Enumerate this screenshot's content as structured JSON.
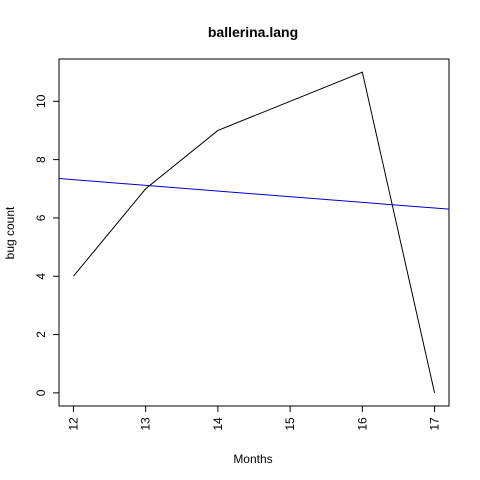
{
  "chart_data": {
    "type": "line",
    "title": "ballerina.lang",
    "xlabel": "Months",
    "ylabel": "bug count",
    "xlim": [
      11.8,
      17.2
    ],
    "ylim": [
      -0.45,
      11.45
    ],
    "x_ticks": [
      12,
      13,
      14,
      15,
      16,
      17
    ],
    "y_ticks": [
      0,
      2,
      4,
      6,
      8,
      10
    ],
    "grid": false,
    "series": [
      {
        "color": "#000000",
        "x": [
          12,
          13,
          14,
          15,
          16,
          17
        ],
        "y": [
          4,
          7,
          9,
          10,
          11,
          0
        ]
      }
    ],
    "trend_line": {
      "color": "#0000cd",
      "x": [
        11.8,
        17.2
      ],
      "y": [
        7.35,
        6.3
      ]
    }
  }
}
